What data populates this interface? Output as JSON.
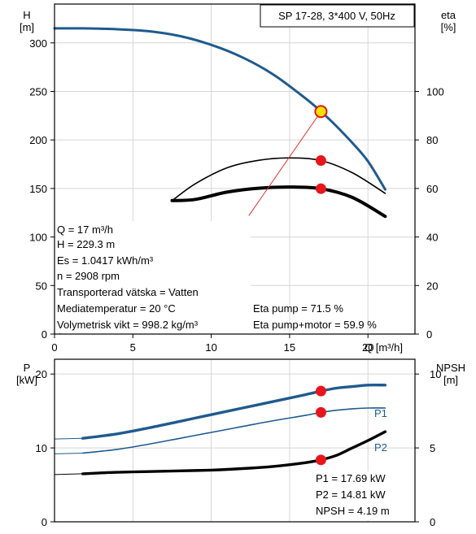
{
  "chart_data": [
    {
      "type": "line",
      "title": "SP 17-28, 3*400 V, 50Hz",
      "xlabel": "Q [m³/h]",
      "x_tick_labels": [
        "0",
        "5",
        "10",
        "15",
        "20"
      ],
      "xlim": [
        0,
        23
      ],
      "ylabel_left": [
        "H",
        "[m]"
      ],
      "ylim_left": [
        0,
        340
      ],
      "y_ticks_left": [
        "0",
        "50",
        "100",
        "150",
        "200",
        "250",
        "300"
      ],
      "ylabel_right": [
        "eta",
        "[%]"
      ],
      "ylim_right": [
        0,
        136
      ],
      "y_ticks_right": [
        "0",
        "20",
        "40",
        "60",
        "80",
        "100"
      ],
      "grid": true,
      "series": [
        {
          "axis": "left",
          "color": "#1f5a8e",
          "x": [
            0,
            1.8,
            4,
            6,
            8,
            10,
            12,
            14,
            16,
            17,
            18,
            19,
            20,
            21.1
          ],
          "values": [
            315,
            315,
            314,
            312,
            307,
            298,
            285,
            267,
            243,
            229.3,
            214,
            197,
            178,
            149
          ]
        },
        {
          "axis": "right",
          "color": "#000000",
          "x": [
            7.5,
            9,
            11,
            13,
            15,
            17,
            19,
            21.1
          ],
          "values": [
            55,
            62,
            68.5,
            71.6,
            72.6,
            71.5,
            66.5,
            58
          ]
        },
        {
          "axis": "right",
          "color": "#000000",
          "x": [
            7.5,
            9,
            11,
            13,
            15,
            17,
            19,
            21.1
          ],
          "values": [
            55,
            55.5,
            58.5,
            60.1,
            60.6,
            59.9,
            56.3,
            48.5
          ]
        }
      ],
      "duty_point": {
        "x": 17,
        "y": 229.3
      },
      "markers_right": [
        {
          "x": 17,
          "y": 71.5
        },
        {
          "x": 17,
          "y": 59.9
        }
      ],
      "annotations": [
        "Q = 17 m³/h",
        "H = 229.3 m",
        "Es = 1.0417 kWh/m³",
        "n = 2908 rpm",
        "Transporterad vätska = Vatten",
        "Mediatemperatur = 20 °C",
        "Volymetrisk vikt = 998.2 kg/m³"
      ],
      "eta_annotations": [
        "Eta pump = 71.5 %",
        "Eta pump+motor = 59.9 %"
      ]
    },
    {
      "type": "line",
      "xlim": [
        0,
        23
      ],
      "ylabel_left": [
        "P",
        "[kW]"
      ],
      "ylim_left": [
        0,
        22
      ],
      "y_ticks_left": [
        "0",
        "10",
        "20"
      ],
      "ylabel_right": [
        "NPSH",
        "[m]"
      ],
      "ylim_right": [
        0,
        11
      ],
      "y_ticks_right": [
        "0",
        "5",
        "10"
      ],
      "grid": true,
      "series": [
        {
          "name": "P1",
          "axis": "left",
          "color": "#1f5a8e",
          "x": [
            0,
            1.8,
            4,
            6,
            8,
            10,
            12,
            14,
            16,
            17,
            18,
            19,
            20,
            21.1
          ],
          "values": [
            11.2,
            11.3,
            11.9,
            12.7,
            13.6,
            14.5,
            15.4,
            16.3,
            17.2,
            17.69,
            18.1,
            18.3,
            18.5,
            18.5
          ]
        },
        {
          "name": "P2",
          "axis": "left",
          "color": "#1f5a8e",
          "x": [
            0,
            1.8,
            4,
            6,
            8,
            10,
            12,
            14,
            16,
            17,
            18,
            19,
            20,
            21.1
          ],
          "values": [
            9.2,
            9.3,
            9.8,
            10.5,
            11.3,
            12.1,
            12.9,
            13.7,
            14.4,
            14.81,
            15.1,
            15.3,
            15.4,
            15.4
          ]
        },
        {
          "axis": "right",
          "color": "#000000",
          "x": [
            0,
            1.8,
            4,
            6,
            8,
            10,
            12,
            14,
            16,
            17,
            18,
            19,
            20,
            21.1
          ],
          "values": [
            3.2,
            3.25,
            3.35,
            3.4,
            3.45,
            3.5,
            3.6,
            3.75,
            4.0,
            4.19,
            4.5,
            5.0,
            5.5,
            6.1
          ]
        }
      ],
      "markers": [
        {
          "axis": "left",
          "x": 17,
          "y": 17.69
        },
        {
          "axis": "left",
          "x": 17,
          "y": 14.81
        },
        {
          "axis": "right",
          "x": 17,
          "y": 4.19
        }
      ],
      "annotations": [
        "P1 = 17.69 kW",
        "P2 = 14.81 kW",
        "NPSH = 4.19 m"
      ]
    }
  ]
}
